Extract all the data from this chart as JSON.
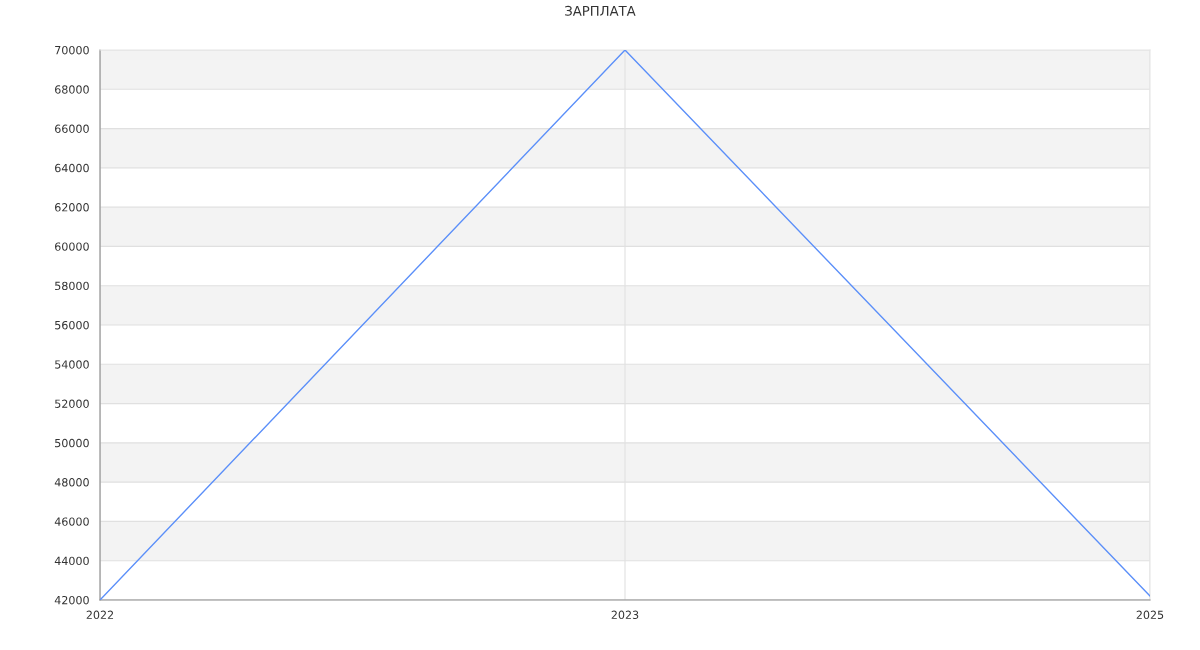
{
  "chart_data": {
    "type": "line",
    "title": "ЗАРПЛАТА",
    "categories": [
      "2022",
      "2023",
      "2025"
    ],
    "series": [
      {
        "color": "#5b8ff9",
        "values": [
          42000,
          70000,
          42200
        ]
      }
    ],
    "ylim": [
      42000,
      70000
    ],
    "yticks": [
      42000,
      44000,
      46000,
      48000,
      50000,
      52000,
      54000,
      56000,
      58000,
      60000,
      62000,
      64000,
      66000,
      68000,
      70000
    ],
    "grid": true,
    "marker": "none",
    "line_style": "solid",
    "legend": false
  }
}
